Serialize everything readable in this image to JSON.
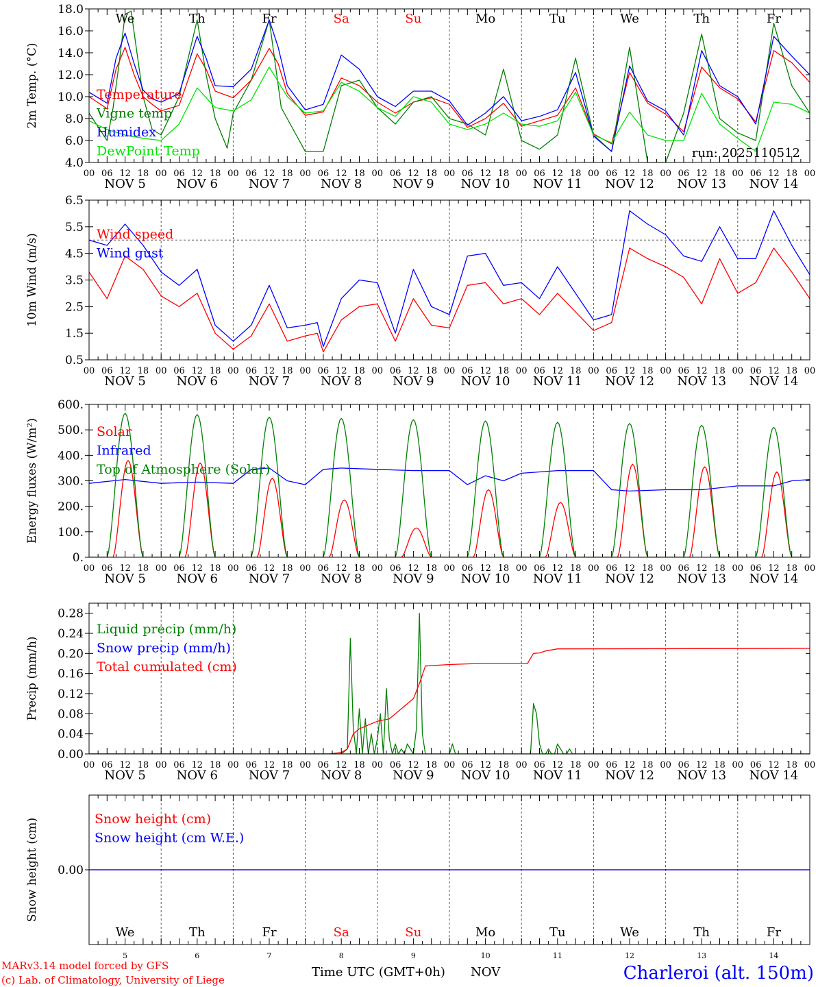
{
  "meta": {
    "run": "run: 2025110512",
    "footer_model": "MARv3.14 model forced by GFS",
    "footer_lab": "(c) Lab. of Climatology, University of Liege",
    "time_axis_label": "Time UTC (GMT+0h)",
    "month_label": "NOV",
    "station": "Charleroi (alt. 150m)"
  },
  "days": [
    {
      "abbr": "We",
      "date": "NOV  5",
      "num": "5",
      "weekend": false
    },
    {
      "abbr": "Th",
      "date": "NOV  6",
      "num": "6",
      "weekend": false
    },
    {
      "abbr": "Fr",
      "date": "NOV  7",
      "num": "7",
      "weekend": false
    },
    {
      "abbr": "Sa",
      "date": "NOV  8",
      "num": "8",
      "weekend": true
    },
    {
      "abbr": "Su",
      "date": "NOV  9",
      "num": "9",
      "weekend": true
    },
    {
      "abbr": "Mo",
      "date": "NOV 10",
      "num": "10",
      "weekend": false
    },
    {
      "abbr": "Tu",
      "date": "NOV 11",
      "num": "11",
      "weekend": false
    },
    {
      "abbr": "We",
      "date": "NOV 12",
      "num": "12",
      "weekend": false
    },
    {
      "abbr": "Th",
      "date": "NOV 13",
      "num": "13",
      "weekend": false
    },
    {
      "abbr": "Fr",
      "date": "NOV 14",
      "num": "14",
      "weekend": false
    }
  ],
  "hour_labels": [
    "00",
    "06",
    "12",
    "18"
  ],
  "colors": {
    "red": "#ff0000",
    "green": "#007f00",
    "blue": "#0000ff",
    "light_green": "#00e400",
    "black": "#000000",
    "grid": "#555555"
  },
  "chart_data": [
    {
      "id": "temp",
      "type": "line",
      "ylabel": "2m Temp. (°C)",
      "ylim": [
        4,
        18
      ],
      "yticks": [
        "4.0",
        "6.0",
        "8.0",
        "10.0",
        "12.0",
        "14.0",
        "16.0",
        "18.0"
      ],
      "x_unit": "hours since NOV 5 00 UTC",
      "series": [
        {
          "name": "Temperature",
          "color": "#ff0000",
          "x": [
            0,
            6,
            9,
            12,
            15,
            18,
            21,
            24,
            30,
            36,
            39,
            42,
            48,
            54,
            60,
            63,
            66,
            72,
            78,
            84,
            90,
            96,
            102,
            108,
            114,
            120,
            126,
            132,
            138,
            144,
            150,
            156,
            162,
            168,
            174,
            180,
            186,
            192,
            198,
            204,
            210,
            216,
            222,
            228,
            234,
            240
          ],
          "values": [
            10.0,
            8.9,
            12.5,
            14.5,
            12.0,
            10.0,
            9.3,
            8.7,
            9.2,
            13.9,
            12.5,
            10.5,
            9.9,
            11.5,
            14.4,
            13.0,
            10.3,
            8.3,
            8.6,
            11.7,
            11.0,
            9.5,
            8.5,
            9.5,
            9.9,
            9.3,
            7.2,
            8.0,
            9.4,
            7.3,
            7.8,
            8.3,
            10.8,
            6.6,
            5.7,
            12.2,
            9.4,
            8.4,
            6.8,
            12.7,
            10.8,
            9.8,
            7.7,
            14.2,
            13.1,
            11.3
          ]
        },
        {
          "name": "Vigne temp",
          "color": "#007f00",
          "x": [
            0,
            6,
            8,
            10,
            12,
            14,
            18,
            21,
            24,
            30,
            36,
            39,
            42,
            46,
            48,
            54,
            60,
            64,
            70,
            72,
            78,
            84,
            90,
            96,
            102,
            108,
            114,
            120,
            126,
            132,
            138,
            144,
            150,
            156,
            162,
            168,
            174,
            180,
            186,
            192,
            198,
            204,
            210,
            216,
            222,
            228,
            234,
            240
          ],
          "values": [
            8.5,
            6.0,
            9.0,
            13.0,
            17.5,
            17.8,
            10.0,
            7.0,
            6.5,
            10.0,
            17.0,
            12.0,
            8.0,
            5.3,
            8.5,
            11.5,
            17.0,
            9.0,
            6.0,
            5.0,
            5.0,
            11.0,
            11.5,
            9.0,
            7.5,
            9.5,
            10.0,
            8.0,
            7.5,
            6.5,
            12.5,
            6.0,
            5.2,
            6.5,
            13.5,
            6.5,
            5.0,
            14.5,
            4.0,
            4.0,
            8.5,
            15.7,
            8.0,
            6.7,
            6.0,
            16.7,
            11.0,
            8.5
          ]
        },
        {
          "name": "Humidex",
          "color": "#0000ff",
          "x": [
            0,
            6,
            9,
            12,
            15,
            18,
            21,
            24,
            30,
            36,
            39,
            42,
            48,
            54,
            60,
            63,
            66,
            72,
            78,
            84,
            90,
            96,
            102,
            108,
            114,
            120,
            126,
            132,
            138,
            144,
            150,
            156,
            162,
            168,
            174,
            180,
            186,
            192,
            198,
            204,
            210,
            216,
            222,
            228,
            234,
            240
          ],
          "values": [
            10.4,
            9.4,
            13.5,
            15.8,
            13.0,
            10.6,
            9.8,
            9.5,
            10.3,
            15.5,
            13.5,
            11.0,
            10.9,
            12.5,
            17.0,
            14.5,
            11.0,
            8.8,
            9.3,
            13.8,
            12.5,
            10.0,
            9.1,
            10.5,
            10.5,
            9.6,
            7.4,
            8.5,
            10.0,
            7.8,
            8.2,
            8.8,
            12.2,
            6.4,
            5.0,
            12.8,
            9.6,
            8.7,
            6.5,
            14.2,
            11.0,
            10.0,
            7.5,
            15.5,
            13.7,
            12.0
          ]
        },
        {
          "name": "DewPoint Temp",
          "color": "#00e400",
          "x": [
            0,
            6,
            12,
            18,
            24,
            30,
            36,
            42,
            48,
            54,
            60,
            66,
            72,
            78,
            84,
            90,
            96,
            102,
            108,
            114,
            120,
            126,
            132,
            138,
            144,
            150,
            156,
            162,
            168,
            174,
            180,
            186,
            192,
            198,
            204,
            210,
            216,
            222,
            228,
            234,
            240
          ],
          "values": [
            7.8,
            7.0,
            6.5,
            6.2,
            6.0,
            7.5,
            10.8,
            9.0,
            8.7,
            9.7,
            12.7,
            10.0,
            8.5,
            8.7,
            11.3,
            10.5,
            9.0,
            8.2,
            10.0,
            9.5,
            7.5,
            7.0,
            7.5,
            8.5,
            7.5,
            7.3,
            7.8,
            10.4,
            6.5,
            5.8,
            8.6,
            6.5,
            6.0,
            6.0,
            10.3,
            7.5,
            6.2,
            5.0,
            9.5,
            9.3,
            8.5
          ]
        }
      ],
      "legend_labels": [
        "Temperature",
        "Vigne temp",
        "Humidex",
        "DewPoint Temp"
      ]
    },
    {
      "id": "wind",
      "type": "line",
      "ylabel": "10m Wind (m/s)",
      "ylim": [
        0.5,
        6.5
      ],
      "yticks": [
        "0.5",
        "1.5",
        "2.5",
        "3.5",
        "4.5",
        "5.5",
        "6.5"
      ],
      "ref_line": 5.0,
      "series": [
        {
          "name": "Wind speed",
          "color": "#ff0000",
          "x": [
            0,
            6,
            12,
            18,
            24,
            30,
            36,
            42,
            48,
            54,
            60,
            66,
            72,
            76,
            78,
            84,
            90,
            96,
            102,
            108,
            114,
            120,
            126,
            132,
            138,
            144,
            150,
            156,
            162,
            168,
            174,
            180,
            186,
            192,
            198,
            204,
            210,
            216,
            222,
            228,
            234,
            240
          ],
          "values": [
            3.8,
            2.8,
            4.4,
            3.9,
            2.9,
            2.5,
            3.0,
            1.5,
            0.9,
            1.4,
            2.6,
            1.2,
            1.4,
            1.5,
            0.8,
            2.0,
            2.5,
            2.6,
            1.2,
            2.8,
            1.8,
            1.7,
            3.3,
            3.4,
            2.6,
            2.8,
            2.2,
            3.0,
            2.3,
            1.6,
            1.9,
            4.7,
            4.3,
            4.0,
            3.6,
            2.6,
            4.3,
            3.0,
            3.4,
            4.7,
            3.8,
            2.8
          ]
        },
        {
          "name": "Wind gust",
          "color": "#0000ff",
          "x": [
            0,
            6,
            12,
            18,
            24,
            30,
            36,
            42,
            48,
            54,
            60,
            66,
            72,
            76,
            78,
            84,
            90,
            96,
            102,
            108,
            114,
            120,
            126,
            132,
            138,
            144,
            150,
            156,
            162,
            168,
            174,
            180,
            186,
            192,
            198,
            204,
            210,
            216,
            222,
            228,
            234,
            240
          ],
          "values": [
            5.0,
            4.8,
            5.6,
            4.8,
            3.8,
            3.3,
            3.9,
            1.8,
            1.2,
            1.8,
            3.3,
            1.7,
            1.8,
            1.9,
            1.0,
            2.8,
            3.5,
            3.4,
            1.5,
            3.9,
            2.5,
            2.2,
            4.4,
            4.5,
            3.3,
            3.4,
            2.8,
            4.0,
            3.0,
            2.0,
            2.2,
            6.1,
            5.6,
            5.2,
            4.4,
            4.2,
            5.5,
            4.3,
            4.3,
            6.1,
            4.8,
            3.7
          ]
        }
      ],
      "legend_labels": [
        "Wind speed",
        "Wind gust"
      ]
    },
    {
      "id": "flux",
      "type": "line",
      "ylabel": "Energy fluxes (W/m²)",
      "ylim": [
        0,
        600
      ],
      "yticks": [
        "0.",
        "100.",
        "200.",
        "300.",
        "400.",
        "500.",
        "600."
      ],
      "series": [
        {
          "name": "Solar",
          "color": "#ff0000",
          "daily_peak_hour": 13,
          "daily_peaks": [
            380,
            370,
            310,
            225,
            115,
            265,
            215,
            365,
            355,
            335
          ]
        },
        {
          "name": "Infrared",
          "color": "#0000ff",
          "x": [
            0,
            12,
            24,
            36,
            48,
            54,
            60,
            66,
            72,
            78,
            84,
            96,
            108,
            120,
            126,
            132,
            138,
            144,
            156,
            168,
            174,
            180,
            192,
            204,
            216,
            228,
            234,
            240
          ],
          "values": [
            290,
            305,
            290,
            295,
            290,
            345,
            350,
            300,
            285,
            345,
            350,
            345,
            340,
            340,
            285,
            320,
            300,
            330,
            340,
            340,
            265,
            260,
            265,
            265,
            280,
            280,
            300,
            305
          ]
        },
        {
          "name": "Top of Atmosphere (Solar)",
          "color": "#007f00",
          "daily_peak_hour": 12,
          "daily_peaks": [
            565,
            560,
            550,
            545,
            540,
            535,
            530,
            525,
            518,
            510
          ]
        }
      ],
      "legend_labels": [
        "Solar",
        "Infrared",
        "Top of Atmosphere (Solar)"
      ]
    },
    {
      "id": "precip",
      "type": "line",
      "ylabel": "Precip (mm/h)",
      "ylim": [
        0,
        0.3
      ],
      "yticks": [
        "0.00",
        "0.04",
        "0.08",
        "0.12",
        "0.16",
        "0.20",
        "0.24",
        "0.28"
      ],
      "series": [
        {
          "name": "Liquid precip (mm/h)",
          "color": "#007f00",
          "x": [
            0,
            84,
            86,
            87,
            88,
            89,
            90,
            91,
            92,
            93,
            94,
            95,
            96,
            97,
            98,
            99,
            100,
            101,
            102,
            103,
            104,
            105,
            106,
            107,
            108,
            109,
            110,
            111,
            112,
            113,
            114,
            115,
            116,
            117,
            118,
            119,
            120,
            121,
            122,
            123,
            146,
            147,
            148,
            149,
            150,
            151,
            152,
            153,
            154,
            155,
            156,
            157,
            158,
            159,
            160,
            161,
            240
          ],
          "values": [
            0,
            0,
            0.01,
            0.23,
            0.05,
            0,
            0.09,
            0,
            0.07,
            0,
            0.04,
            0,
            0.03,
            0.08,
            0,
            0.13,
            0.03,
            0,
            0.02,
            0,
            0.01,
            0,
            0.02,
            0.01,
            0,
            0.05,
            0.28,
            0.04,
            0,
            0,
            0,
            0,
            0,
            0,
            0,
            0,
            0,
            0.02,
            0,
            0,
            0,
            0,
            0.1,
            0.08,
            0.02,
            0,
            0,
            0.01,
            0,
            0,
            0.02,
            0.01,
            0,
            0,
            0.01,
            0,
            0
          ]
        },
        {
          "name": "Snow precip (mm/h)",
          "color": "#0000ff",
          "x": [
            0,
            240
          ],
          "values": [
            0,
            0
          ]
        },
        {
          "name": "Total cumulated (cm)",
          "color": "#ff0000",
          "x": [
            0,
            80,
            84,
            86,
            88,
            90,
            96,
            100,
            104,
            106,
            108,
            110,
            112,
            120,
            130,
            140,
            146,
            148,
            150,
            152,
            156,
            240
          ],
          "values": [
            0,
            0,
            0.003,
            0.01,
            0.04,
            0.05,
            0.065,
            0.07,
            0.09,
            0.1,
            0.11,
            0.14,
            0.175,
            0.178,
            0.18,
            0.18,
            0.18,
            0.2,
            0.201,
            0.205,
            0.209,
            0.21
          ]
        }
      ],
      "legend_labels": [
        "Liquid precip (mm/h)",
        "Snow precip (mm/h)",
        "Total cumulated (cm)"
      ]
    },
    {
      "id": "snow",
      "type": "line",
      "ylabel": "Snow height (cm)",
      "ylim": [
        -1,
        1
      ],
      "yticks": [
        "0.00"
      ],
      "series": [
        {
          "name": "Snow height (cm)",
          "color": "#ff0000",
          "x": [
            0,
            240
          ],
          "values": [
            0,
            0
          ]
        },
        {
          "name": "Snow height (cm W.E.)",
          "color": "#0000ff",
          "x": [
            0,
            240
          ],
          "values": [
            0,
            0
          ]
        }
      ],
      "legend_labels": [
        "Snow height (cm)",
        "Snow height (cm W.E.)"
      ]
    }
  ]
}
